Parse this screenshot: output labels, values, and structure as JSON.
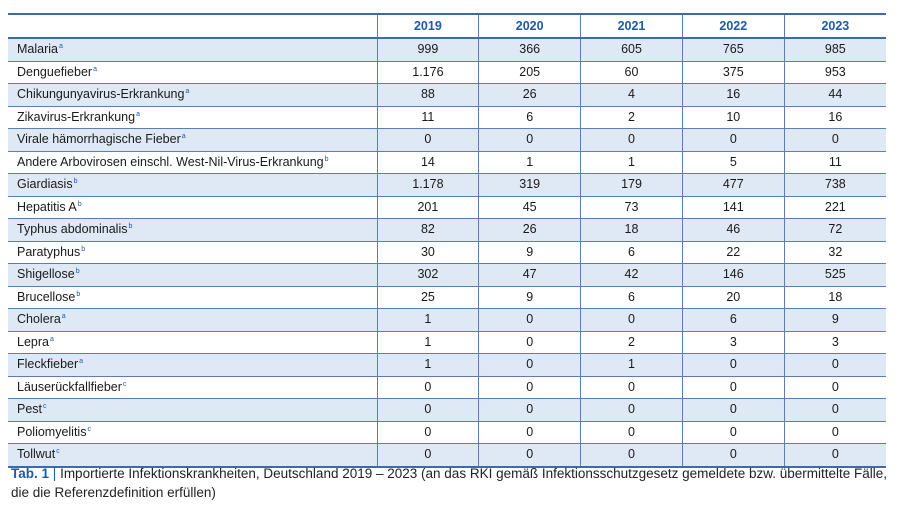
{
  "table": {
    "years": [
      "2019",
      "2020",
      "2021",
      "2022",
      "2023"
    ],
    "rows": [
      {
        "name": "Malaria",
        "note": "a",
        "values": [
          "999",
          "366",
          "605",
          "765",
          "985"
        ]
      },
      {
        "name": "Denguefieber",
        "note": "a",
        "values": [
          "1.176",
          "205",
          "60",
          "375",
          "953"
        ]
      },
      {
        "name": "Chikungunyavirus-Erkrankung",
        "note": "a",
        "values": [
          "88",
          "26",
          "4",
          "16",
          "44"
        ]
      },
      {
        "name": "Zikavirus-Erkrankung",
        "note": "a",
        "values": [
          "11",
          "6",
          "2",
          "10",
          "16"
        ]
      },
      {
        "name": "Virale hämorrhagische Fieber",
        "note": "a",
        "values": [
          "0",
          "0",
          "0",
          "0",
          "0"
        ]
      },
      {
        "name": "Andere Arbovirosen einschl. West-Nil-Virus-Erkrankung",
        "note": "b",
        "values": [
          "14",
          "1",
          "1",
          "5",
          "11"
        ]
      },
      {
        "name": "Giardiasis",
        "note": "b",
        "values": [
          "1.178",
          "319",
          "179",
          "477",
          "738"
        ]
      },
      {
        "name": "Hepatitis A",
        "note": "b",
        "values": [
          "201",
          "45",
          "73",
          "141",
          "221"
        ]
      },
      {
        "name": "Typhus abdominalis",
        "note": "b",
        "values": [
          "82",
          "26",
          "18",
          "46",
          "72"
        ]
      },
      {
        "name": "Paratyphus",
        "note": "b",
        "values": [
          "30",
          "9",
          "6",
          "22",
          "32"
        ]
      },
      {
        "name": "Shigellose",
        "note": "b",
        "values": [
          "302",
          "47",
          "42",
          "146",
          "525"
        ]
      },
      {
        "name": "Brucellose",
        "note": "b",
        "values": [
          "25",
          "9",
          "6",
          "20",
          "18"
        ]
      },
      {
        "name": "Cholera",
        "note": "a",
        "values": [
          "1",
          "0",
          "0",
          "6",
          "9"
        ]
      },
      {
        "name": "Lepra",
        "note": "a",
        "values": [
          "1",
          "0",
          "2",
          "3",
          "3"
        ]
      },
      {
        "name": "Fleckfieber",
        "note": "a",
        "values": [
          "1",
          "0",
          "1",
          "0",
          "0"
        ]
      },
      {
        "name": "Läuserückfallfieber",
        "note": "c",
        "values": [
          "0",
          "0",
          "0",
          "0",
          "0"
        ]
      },
      {
        "name": "Pest",
        "note": "c",
        "values": [
          "0",
          "0",
          "0",
          "0",
          "0"
        ]
      },
      {
        "name": "Poliomyelitis",
        "note": "c",
        "values": [
          "0",
          "0",
          "0",
          "0",
          "0"
        ]
      },
      {
        "name": "Tollwut",
        "note": "c",
        "values": [
          "0",
          "0",
          "0",
          "0",
          "0"
        ]
      }
    ]
  },
  "caption": {
    "label": "Tab. 1",
    "separator": "|",
    "text": "Importierte Infektionskrankheiten, Deutschland 2019 – 2023 (an das RKI gemäß Infektionsschutzgesetz gemeldete bzw. übermittelte Fälle, die die Referenzdefinition erfüllen)"
  },
  "colors": {
    "accent": "#1f5aa6",
    "stripe": "#dfe8f5",
    "rule": "#3e6aa8"
  }
}
